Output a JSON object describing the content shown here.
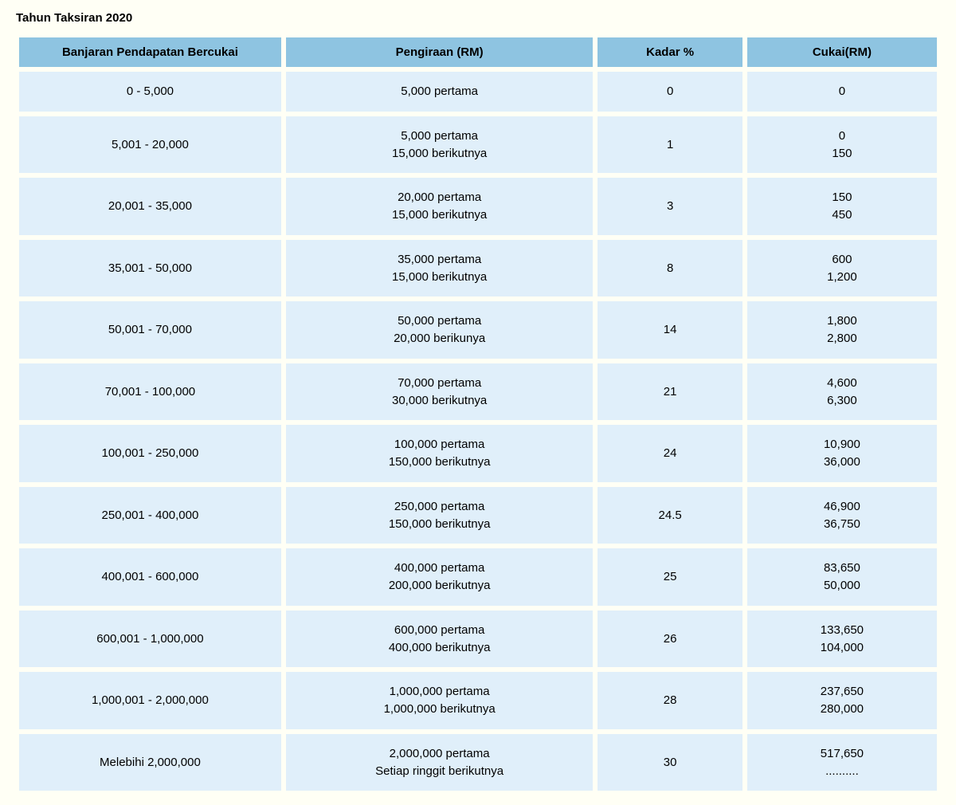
{
  "title": "Tahun Taksiran 2020",
  "headers": {
    "range": "Banjaran Pendapatan Bercukai",
    "calc": "Pengiraan (RM)",
    "rate": "Kadar %",
    "tax": "Cukai(RM)"
  },
  "colors": {
    "page_bg": "#fffff5",
    "header_bg": "#8ec4e1",
    "cell_bg": "#e0effa",
    "text": "#000000"
  },
  "column_widths_pct": {
    "range": 29,
    "calc": 34,
    "rate": 16,
    "tax": 21
  },
  "fontsize": {
    "title": 15,
    "header": 15,
    "cell": 15
  },
  "rows": [
    {
      "range": "0 - 5,000",
      "calc": "5,000 pertama",
      "rate": "0",
      "tax": "0"
    },
    {
      "range": "5,001 - 20,000",
      "calc": "5,000 pertama\n15,000 berikutnya",
      "rate": "1",
      "tax": "0\n150"
    },
    {
      "range": "20,001 - 35,000",
      "calc": "20,000 pertama\n15,000 berikutnya",
      "rate": "3",
      "tax": "150\n450"
    },
    {
      "range": "35,001 - 50,000",
      "calc": "35,000 pertama\n15,000 berikutnya",
      "rate": "8",
      "tax": "600\n1,200"
    },
    {
      "range": "50,001 - 70,000",
      "calc": "50,000 pertama\n20,000 berikunya",
      "rate": "14",
      "tax": "1,800\n2,800"
    },
    {
      "range": "70,001 - 100,000",
      "calc": "70,000 pertama\n30,000 berikutnya",
      "rate": "21",
      "tax": "4,600\n6,300"
    },
    {
      "range": "100,001 - 250,000",
      "calc": "100,000 pertama\n150,000 berikutnya",
      "rate": "24",
      "tax": "10,900\n36,000"
    },
    {
      "range": "250,001 - 400,000",
      "calc": "250,000 pertama\n150,000 berikutnya",
      "rate": "24.5",
      "tax": "46,900\n36,750"
    },
    {
      "range": "400,001 - 600,000",
      "calc": "400,000 pertama\n200,000 berikutnya",
      "rate": "25",
      "tax": "83,650\n50,000"
    },
    {
      "range": "600,001 - 1,000,000",
      "calc": "600,000 pertama\n400,000 berikutnya",
      "rate": "26",
      "tax": "133,650\n104,000"
    },
    {
      "range": "1,000,001 - 2,000,000",
      "calc": "1,000,000 pertama\n1,000,000 berikutnya",
      "rate": "28",
      "tax": "237,650\n280,000"
    },
    {
      "range": "Melebihi 2,000,000",
      "calc": "2,000,000 pertama\nSetiap ringgit berikutnya",
      "rate": "30",
      "tax": "517,650\n.........."
    }
  ]
}
